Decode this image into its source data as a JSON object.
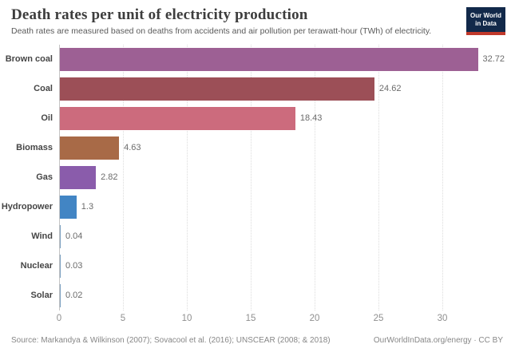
{
  "header": {
    "title": "Death rates per unit of electricity production",
    "subtitle": "Death rates are measured based on deaths from accidents and air pollution per terawatt-hour (TWh) of electricity.",
    "logo": {
      "line1": "Our World",
      "line2": "in Data",
      "bg_color": "#12294a",
      "accent_color": "#c0392b"
    }
  },
  "chart_data": {
    "type": "bar",
    "orientation": "horizontal",
    "title": "Death rates per unit of electricity production",
    "categories": [
      "Brown coal",
      "Coal",
      "Oil",
      "Biomass",
      "Gas",
      "Hydropower",
      "Wind",
      "Nuclear",
      "Solar"
    ],
    "values": [
      32.72,
      24.62,
      18.43,
      4.63,
      2.82,
      1.3,
      0.04,
      0.03,
      0.02
    ],
    "value_labels": [
      "32.72",
      "24.62",
      "18.43",
      "4.63",
      "2.82",
      "1.3",
      "0.04",
      "0.03",
      "0.02"
    ],
    "bar_colors": [
      "#9d6094",
      "#9c4f57",
      "#cc6b7d",
      "#a86a47",
      "#8a5cab",
      "#4285c4",
      "#7ba0c0",
      "#7ba0c0",
      "#7ba0c0"
    ],
    "x_ticks": [
      0,
      5,
      10,
      15,
      20,
      25,
      30
    ],
    "xlim": [
      0,
      34.9
    ],
    "grid": "vertical-dotted",
    "legend": "none",
    "xlabel": "",
    "ylabel": ""
  },
  "footer": {
    "source": "Source: Markandya & Wilkinson (2007); Sovacool et al. (2016); UNSCEAR (2008; & 2018)",
    "attribution": "OurWorldInData.org/energy · CC BY"
  }
}
